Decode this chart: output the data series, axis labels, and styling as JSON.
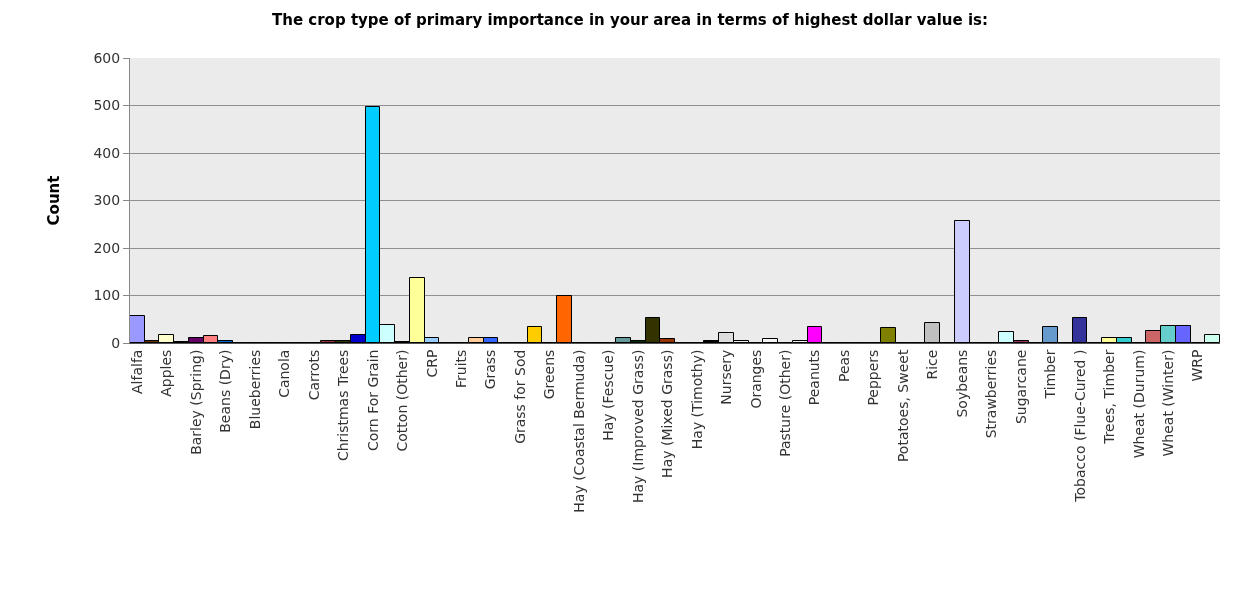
{
  "chart_data": {
    "type": "bar",
    "title": "The crop type of primary importance in your area in terms of highest dollar value is:",
    "ylabel": "Count",
    "categories": [
      "Alfalfa",
      null,
      "Apples",
      null,
      "Barley (Spring)",
      null,
      "Beans (Dry)",
      null,
      "Blueberries",
      null,
      "Canola",
      null,
      "Carrots",
      null,
      "Christmas Trees",
      null,
      "Corn For Grain",
      null,
      "Cotton (Other)",
      null,
      "CRP",
      null,
      "Fruits",
      null,
      "Grass",
      null,
      "Grass for Sod",
      null,
      "Greens",
      null,
      "Hay (Coastal Bermuda)",
      null,
      "Hay (Fescue)",
      null,
      "Hay (Improved Grass)",
      null,
      "Hay (Mixed Grass)",
      null,
      "Hay (Timothy)",
      null,
      "Nursery",
      null,
      "Oranges",
      null,
      "Pasture (Other)",
      null,
      "Peanuts",
      null,
      "Peas",
      null,
      "Peppers",
      null,
      "Potatoes, Sweet",
      null,
      "Rice",
      null,
      "Soybeans",
      null,
      "Strawberries",
      null,
      "Sugarcane",
      null,
      "Timber",
      null,
      "Tobacco (Flue-Cured )",
      null,
      "Trees, Timber",
      null,
      "Wheat (Durum)",
      null,
      "Wheat (Winter)",
      null,
      "WRP",
      null
    ],
    "values": [
      57,
      4,
      17,
      2,
      10,
      14,
      5,
      1,
      1,
      1,
      1,
      1,
      1,
      4,
      4,
      17,
      497,
      38,
      2,
      136,
      10,
      1,
      1,
      10,
      10,
      1,
      1,
      34,
      1,
      99,
      1,
      1,
      1,
      10,
      4,
      52,
      9,
      1,
      1,
      5,
      21,
      4,
      1,
      8,
      1,
      4,
      34,
      1,
      1,
      1,
      1,
      31,
      1,
      1,
      42,
      1,
      257,
      1,
      1,
      23,
      5,
      1,
      34,
      1,
      53,
      1,
      10,
      10,
      1,
      26,
      36,
      36,
      1,
      17
    ],
    "colors": [
      "#9999ff",
      "#663300",
      "#ffffcc",
      "#000000",
      "#660066",
      "#ff8080",
      "#0066cc",
      "#000000",
      "#000000",
      "#000000",
      "#000000",
      "#000000",
      "#000000",
      "#993333",
      "#333300",
      "#0000cc",
      "#00ccff",
      "#ccffff",
      "#000000",
      "#ffff99",
      "#99ccff",
      "#000000",
      "#000000",
      "#ffcc99",
      "#3366ff",
      "#000000",
      "#000000",
      "#ffcc00",
      "#000000",
      "#ff6600",
      "#000000",
      "#000000",
      "#000000",
      "#669999",
      "#003300",
      "#333300",
      "#993300",
      "#000000",
      "#000000",
      "#000000",
      "#dddddd",
      "#eeeeee",
      "#000000",
      "#f5f5f5",
      "#000000",
      "#f0f0f0",
      "#ff00ff",
      "#000000",
      "#000000",
      "#000000",
      "#000000",
      "#808000",
      "#000000",
      "#000000",
      "#c0c0c0",
      "#000000",
      "#ccccff",
      "#000000",
      "#000000",
      "#ccffff",
      "#993366",
      "#000000",
      "#6699cc",
      "#000000",
      "#333399",
      "#000000",
      "#ffff99",
      "#33cccc",
      "#000000",
      "#cc6666",
      "#66cccc",
      "#6666ff",
      "#000000",
      "#ccffee"
    ],
    "ylim": [
      0,
      600
    ],
    "yticks": [
      0,
      100,
      200,
      300,
      400,
      500,
      600
    ],
    "grid": "y"
  }
}
